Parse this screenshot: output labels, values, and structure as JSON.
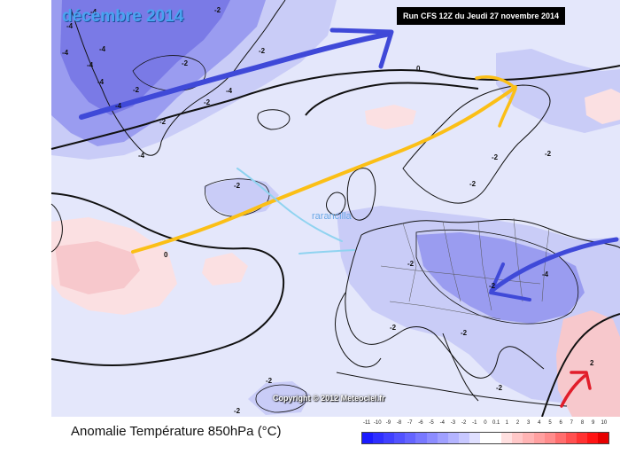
{
  "header": {
    "month": "décembre 2014",
    "run_info": "Run CFS 12Z du Jeudi 27 novembre 2014"
  },
  "footer": {
    "anomaly_title": "Anomalie Température 850hPa (°C)",
    "copyright": "Copyright © 2012 Meteociel.fr"
  },
  "annotation": "rarancilla",
  "isoline_labels": [
    "-4",
    "-2",
    "-4",
    "-2",
    "-4",
    "-4",
    "-2",
    "-2",
    "-4",
    "-4",
    "-2",
    "-2",
    "-2",
    "0",
    "0",
    "-2",
    "-2",
    "-2",
    "-4",
    "-2",
    "-2",
    "-2",
    "-2",
    "-2",
    "-2",
    "-4",
    "-4",
    "-4",
    "-2",
    "2"
  ],
  "legend": {
    "labels": [
      "-11",
      "-10",
      "-9",
      "-8",
      "-7",
      "-6",
      "-5",
      "-4",
      "-3",
      "-2",
      "-1",
      "0",
      "0.1",
      "1",
      "2",
      "3",
      "4",
      "5",
      "6",
      "7",
      "8",
      "9",
      "10"
    ],
    "colors": [
      "#1a1aff",
      "#2e2eff",
      "#4040ff",
      "#5252ff",
      "#6464ff",
      "#7878ff",
      "#8c8cff",
      "#a0a0ff",
      "#b4b4ff",
      "#c8c8ff",
      "#e0e0ff",
      "#ffffff",
      "#ffffff",
      "#ffe0e0",
      "#ffc8c8",
      "#ffb4b4",
      "#ffa0a0",
      "#ff8c8c",
      "#ff6e6e",
      "#ff5050",
      "#ff3232",
      "#ff1414",
      "#e60000"
    ]
  },
  "colors": {
    "cold_1": "#7a7ae6",
    "cold_2": "#9a9cf0",
    "cold_3": "#c9ccf7",
    "cold_4": "#e4e7fb",
    "warm_1": "#f7c8cc",
    "warm_2": "#fbe0e2",
    "arrow_blue": "#3f49d8",
    "arrow_yellow": "#fbbf16",
    "arrow_red": "#e11d2a",
    "isoline": "#111111",
    "coast": "#111111"
  }
}
